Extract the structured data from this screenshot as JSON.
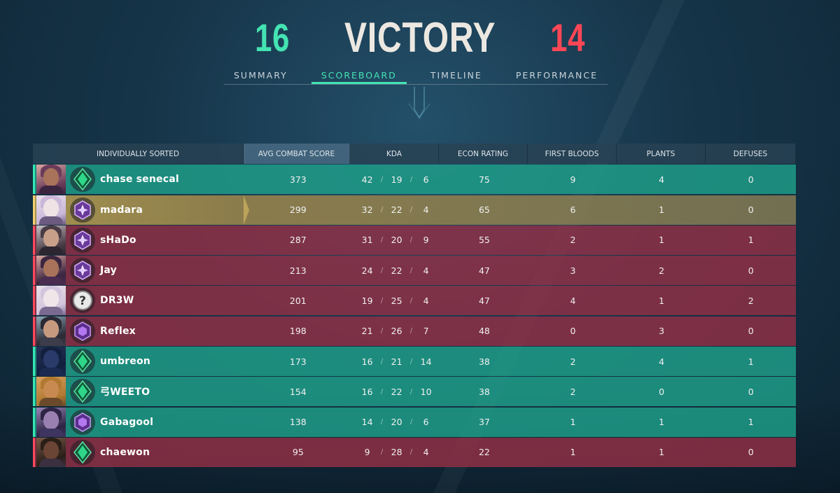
{
  "match": {
    "team_score": "16",
    "result": "VICTORY",
    "enemy_score": "14"
  },
  "colors": {
    "team_a": "#44e3b2",
    "team_b": "#ff4655",
    "self": "#c8a85a"
  },
  "tabs": [
    {
      "label": "SUMMARY",
      "active": false
    },
    {
      "label": "SCOREBOARD",
      "active": true
    },
    {
      "label": "TIMELINE",
      "active": false
    },
    {
      "label": "PERFORMANCE",
      "active": false
    }
  ],
  "table": {
    "headers": {
      "name": "INDIVIDUALLY SORTED",
      "acs": "AVG COMBAT SCORE",
      "kda": "KDA",
      "econ": "ECON RATING",
      "fb": "FIRST BLOODS",
      "plants": "PLANTS",
      "defuses": "DEFUSES"
    },
    "rows": [
      {
        "name": "chase senecal",
        "team": "a",
        "rank_icon": "emerald-rank-icon",
        "acs": "373",
        "k": "42",
        "d": "19",
        "a": "6",
        "econ": "75",
        "fb": "9",
        "plants": "4",
        "defuses": "0"
      },
      {
        "name": "madara",
        "team": "self",
        "rank_icon": "amethyst-rank-icon",
        "acs": "299",
        "k": "32",
        "d": "22",
        "a": "4",
        "econ": "65",
        "fb": "6",
        "plants": "1",
        "defuses": "0"
      },
      {
        "name": "sHaDo",
        "team": "b",
        "rank_icon": "amethyst-rank-icon",
        "acs": "287",
        "k": "31",
        "d": "20",
        "a": "9",
        "econ": "55",
        "fb": "2",
        "plants": "1",
        "defuses": "1"
      },
      {
        "name": "Jay",
        "team": "b",
        "rank_icon": "amethyst-rank-icon",
        "acs": "213",
        "k": "24",
        "d": "22",
        "a": "4",
        "econ": "47",
        "fb": "3",
        "plants": "2",
        "defuses": "0"
      },
      {
        "name": "DR3W",
        "team": "b",
        "rank_icon": "unranked-question-icon",
        "acs": "201",
        "k": "19",
        "d": "25",
        "a": "4",
        "econ": "47",
        "fb": "4",
        "plants": "1",
        "defuses": "2"
      },
      {
        "name": "Reflex",
        "team": "b",
        "rank_icon": "amethyst-hexagon-icon",
        "acs": "198",
        "k": "21",
        "d": "26",
        "a": "7",
        "econ": "48",
        "fb": "0",
        "plants": "3",
        "defuses": "0"
      },
      {
        "name": "umbreon",
        "team": "a",
        "rank_icon": "emerald-rank-icon",
        "acs": "173",
        "k": "16",
        "d": "21",
        "a": "14",
        "econ": "38",
        "fb": "2",
        "plants": "4",
        "defuses": "1"
      },
      {
        "name": "弓WEETO",
        "team": "a",
        "rank_icon": "emerald-rank-icon",
        "acs": "154",
        "k": "16",
        "d": "22",
        "a": "10",
        "econ": "38",
        "fb": "2",
        "plants": "0",
        "defuses": "0"
      },
      {
        "name": "Gabagool",
        "team": "a",
        "rank_icon": "amethyst-hexagon-icon",
        "acs": "138",
        "k": "14",
        "d": "20",
        "a": "6",
        "econ": "37",
        "fb": "1",
        "plants": "1",
        "defuses": "1"
      },
      {
        "name": "chaewon",
        "team": "b",
        "rank_icon": "emerald-rank-icon",
        "acs": "95",
        "k": "9",
        "d": "28",
        "a": "4",
        "econ": "22",
        "fb": "1",
        "plants": "1",
        "defuses": "0"
      }
    ]
  }
}
